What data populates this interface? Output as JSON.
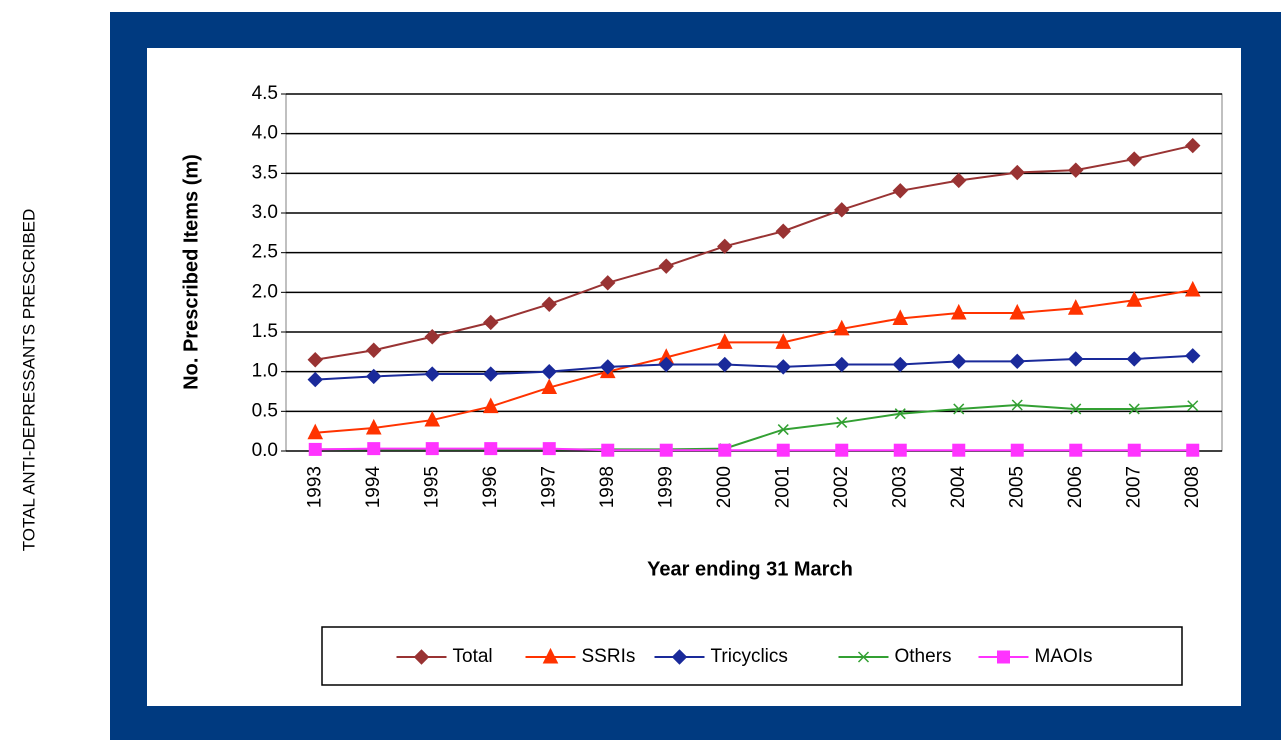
{
  "side_label": "TOTAL ANTI-DEPRESSANTS PRESCRIBED",
  "chart_data": {
    "type": "line",
    "x_label": "Year ending 31 March",
    "y_label": "No. Prescribed Items (m)",
    "categories": [
      "1993",
      "1994",
      "1995",
      "1996",
      "1997",
      "1998",
      "1999",
      "2000",
      "2001",
      "2002",
      "2003",
      "2004",
      "2005",
      "2006",
      "2007",
      "2008"
    ],
    "series": [
      {
        "name": "Total",
        "color": "#993333",
        "marker": "diamond",
        "values": [
          1.15,
          1.27,
          1.44,
          1.62,
          1.85,
          2.12,
          2.33,
          2.58,
          2.77,
          3.04,
          3.28,
          3.41,
          3.51,
          3.54,
          3.68,
          3.85
        ]
      },
      {
        "name": "SSRIs",
        "color": "#ff3300",
        "marker": "triangle",
        "values": [
          0.23,
          0.29,
          0.39,
          0.56,
          0.8,
          1.0,
          1.18,
          1.37,
          1.37,
          1.54,
          1.67,
          1.74,
          1.74,
          1.8,
          1.9,
          2.03
        ]
      },
      {
        "name": "Tricyclics",
        "color": "#1a2a9a",
        "marker": "diamond",
        "values": [
          0.9,
          0.94,
          0.97,
          0.97,
          1.0,
          1.06,
          1.09,
          1.09,
          1.06,
          1.09,
          1.09,
          1.13,
          1.13,
          1.16,
          1.16,
          1.2
        ]
      },
      {
        "name": "Others",
        "color": "#33a033",
        "marker": "x",
        "values": [
          0.02,
          0.02,
          0.02,
          0.02,
          0.02,
          0.02,
          0.02,
          0.03,
          0.27,
          0.36,
          0.47,
          0.53,
          0.58,
          0.53,
          0.53,
          0.57
        ]
      },
      {
        "name": "MAOIs",
        "color": "#ff33ff",
        "marker": "square",
        "values": [
          0.02,
          0.03,
          0.03,
          0.03,
          0.03,
          0.01,
          0.01,
          0.01,
          0.01,
          0.01,
          0.01,
          0.01,
          0.01,
          0.01,
          0.01,
          0.01
        ]
      }
    ],
    "ylim": [
      0,
      4.5
    ],
    "yticks": [
      {
        "value": 0,
        "label": "0.0"
      },
      0.5,
      {
        "value": 1,
        "label": "1.0"
      },
      1.5,
      {
        "value": 2,
        "label": "2.0"
      },
      2.5,
      {
        "value": 3,
        "label": "3.0"
      },
      3.5,
      {
        "value": 4,
        "label": "4.0"
      },
      4.5
    ],
    "grid": true,
    "legend": "bottom"
  }
}
